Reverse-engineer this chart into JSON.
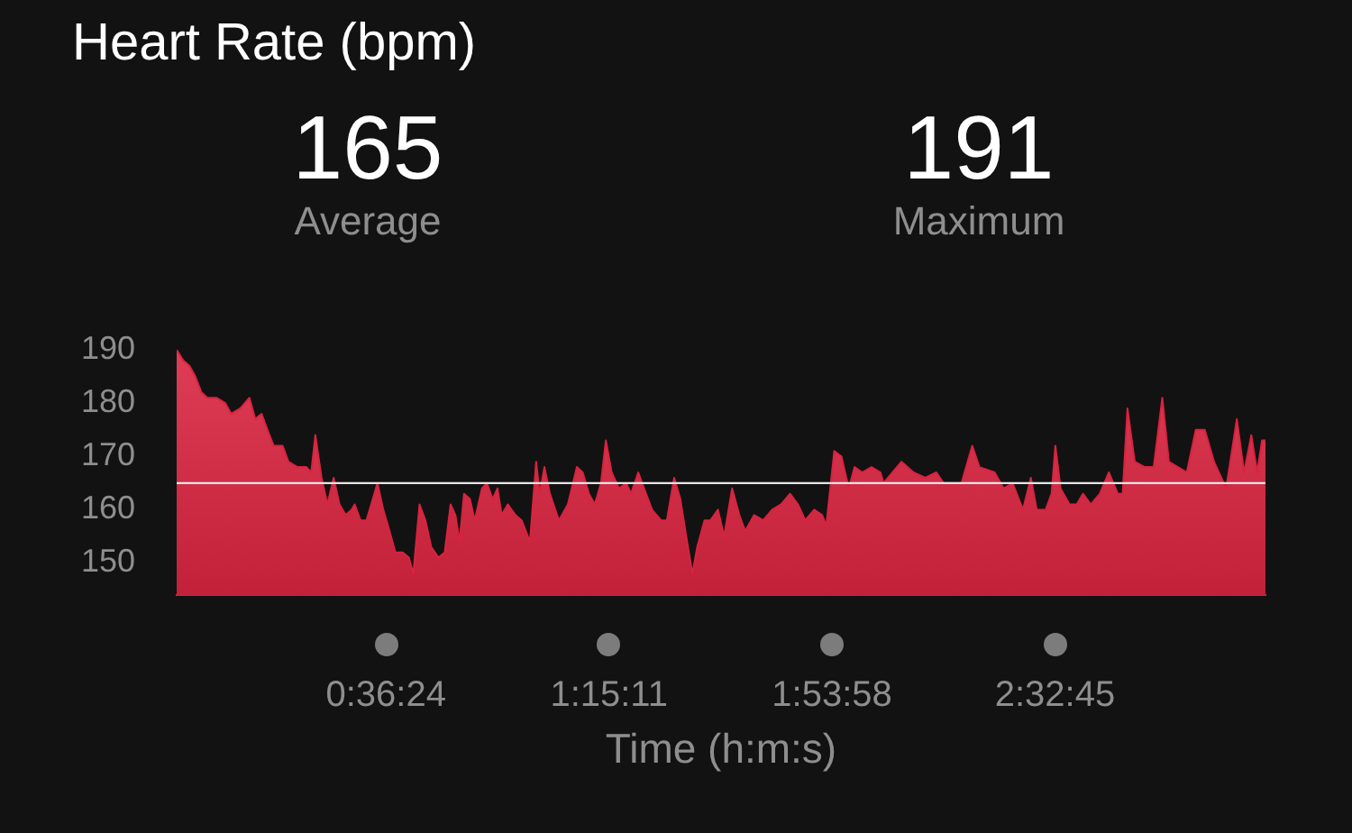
{
  "chart_data": {
    "type": "area",
    "title": "Heart Rate (bpm)",
    "xlabel": "Time (h:m:s)",
    "annotations": [
      "165",
      "Average",
      "191",
      "Maximum"
    ],
    "x": [
      0,
      0.019,
      0.037,
      0.054,
      0.072,
      0.089,
      0.115,
      0.141,
      0.158,
      0.184,
      0.211,
      0.228,
      0.246,
      0.263,
      0.281,
      0.307,
      0.324,
      0.35,
      0.376,
      0.39,
      0.402,
      0.42,
      0.437,
      0.455,
      0.472,
      0.49,
      0.507,
      0.516,
      0.533,
      0.55,
      0.564,
      0.582,
      0.599,
      0.617,
      0.634,
      0.655,
      0.673,
      0.686,
      0.704,
      0.721,
      0.738,
      0.759,
      0.777,
      0.794,
      0.808,
      0.82,
      0.833,
      0.85,
      0.864,
      0.885,
      0.899,
      0.916,
      0.93,
      0.942,
      0.96,
      0.982,
      1.0,
      1.024,
      1.042,
      1.052,
      1.066,
      1.082,
      1.108,
      1.134,
      1.16,
      1.177,
      1.195,
      1.212,
      1.23,
      1.244,
      1.261,
      1.282,
      1.303,
      1.317,
      1.338,
      1.355,
      1.378,
      1.404,
      1.421,
      1.442,
      1.46,
      1.477,
      1.495,
      1.509,
      1.53,
      1.547,
      1.569,
      1.587,
      1.61,
      1.631,
      1.648,
      1.674,
      1.7,
      1.726,
      1.752,
      1.778,
      1.801,
      1.822,
      1.848,
      1.871,
      1.883,
      1.906,
      1.927,
      1.948,
      1.965,
      1.987,
      2.014,
      2.04,
      2.049,
      2.075,
      2.101,
      2.136,
      2.17,
      2.202,
      2.223,
      2.275,
      2.306,
      2.327,
      2.371,
      2.397,
      2.423,
      2.453,
      2.476,
      2.493,
      2.519,
      2.536,
      2.547,
      2.562,
      2.588,
      2.609,
      2.627,
      2.65,
      2.676,
      2.702,
      2.728,
      2.742,
      2.756,
      2.777,
      2.806,
      2.832,
      2.857,
      2.876,
      2.902,
      2.928,
      2.954,
      2.98,
      3.007,
      3.042,
      3.073,
      3.094,
      3.115,
      3.132,
      3.146,
      3.156
    ],
    "values": [
      190,
      188,
      187,
      185,
      182,
      181,
      181,
      180,
      178,
      179,
      181,
      177,
      178,
      175,
      172,
      172,
      169,
      168,
      168,
      167,
      174,
      166,
      161,
      166,
      161,
      159,
      160,
      161,
      158,
      158,
      161,
      165,
      160,
      156,
      152,
      152,
      151,
      148,
      161,
      158,
      153,
      151,
      152,
      161,
      159,
      154,
      163,
      162,
      158,
      164,
      165,
      162,
      164,
      159,
      161,
      159,
      158,
      154,
      169,
      163,
      168,
      163,
      158,
      161,
      168,
      167,
      163,
      161,
      165,
      173,
      167,
      164,
      165,
      163,
      167,
      164,
      160,
      158,
      158,
      166,
      162,
      155,
      148,
      153,
      158,
      158,
      160,
      155,
      164,
      159,
      156,
      159,
      158,
      160,
      161,
      163,
      161,
      158,
      160,
      159,
      157,
      171,
      170,
      164,
      168,
      167,
      168,
      167,
      165,
      167,
      169,
      167,
      166,
      167,
      165,
      165,
      172,
      168,
      167,
      164,
      165,
      160,
      166,
      160,
      160,
      163,
      172,
      164,
      161,
      161,
      163,
      161,
      163,
      167,
      163,
      163,
      179,
      169,
      168,
      168,
      181,
      169,
      168,
      167,
      175,
      175,
      169,
      164,
      177,
      167,
      174,
      167,
      173,
      173
    ],
    "color": "#d9233f",
    "xlim": [
      0,
      3.156
    ],
    "xticks": [
      {
        "value": 0.6067,
        "label": "0:36:24"
      },
      {
        "value": 1.2531,
        "label": "1:15:11"
      },
      {
        "value": 1.8994,
        "label": "1:53:58"
      },
      {
        "value": 2.5458,
        "label": "2:32:45"
      }
    ],
    "ylim": [
      144,
      190
    ],
    "yticks": [
      150,
      160,
      170,
      180,
      190
    ],
    "ref_lines": [
      {
        "axis": "y",
        "value": 165,
        "color": "#e6e6e6"
      }
    ]
  }
}
